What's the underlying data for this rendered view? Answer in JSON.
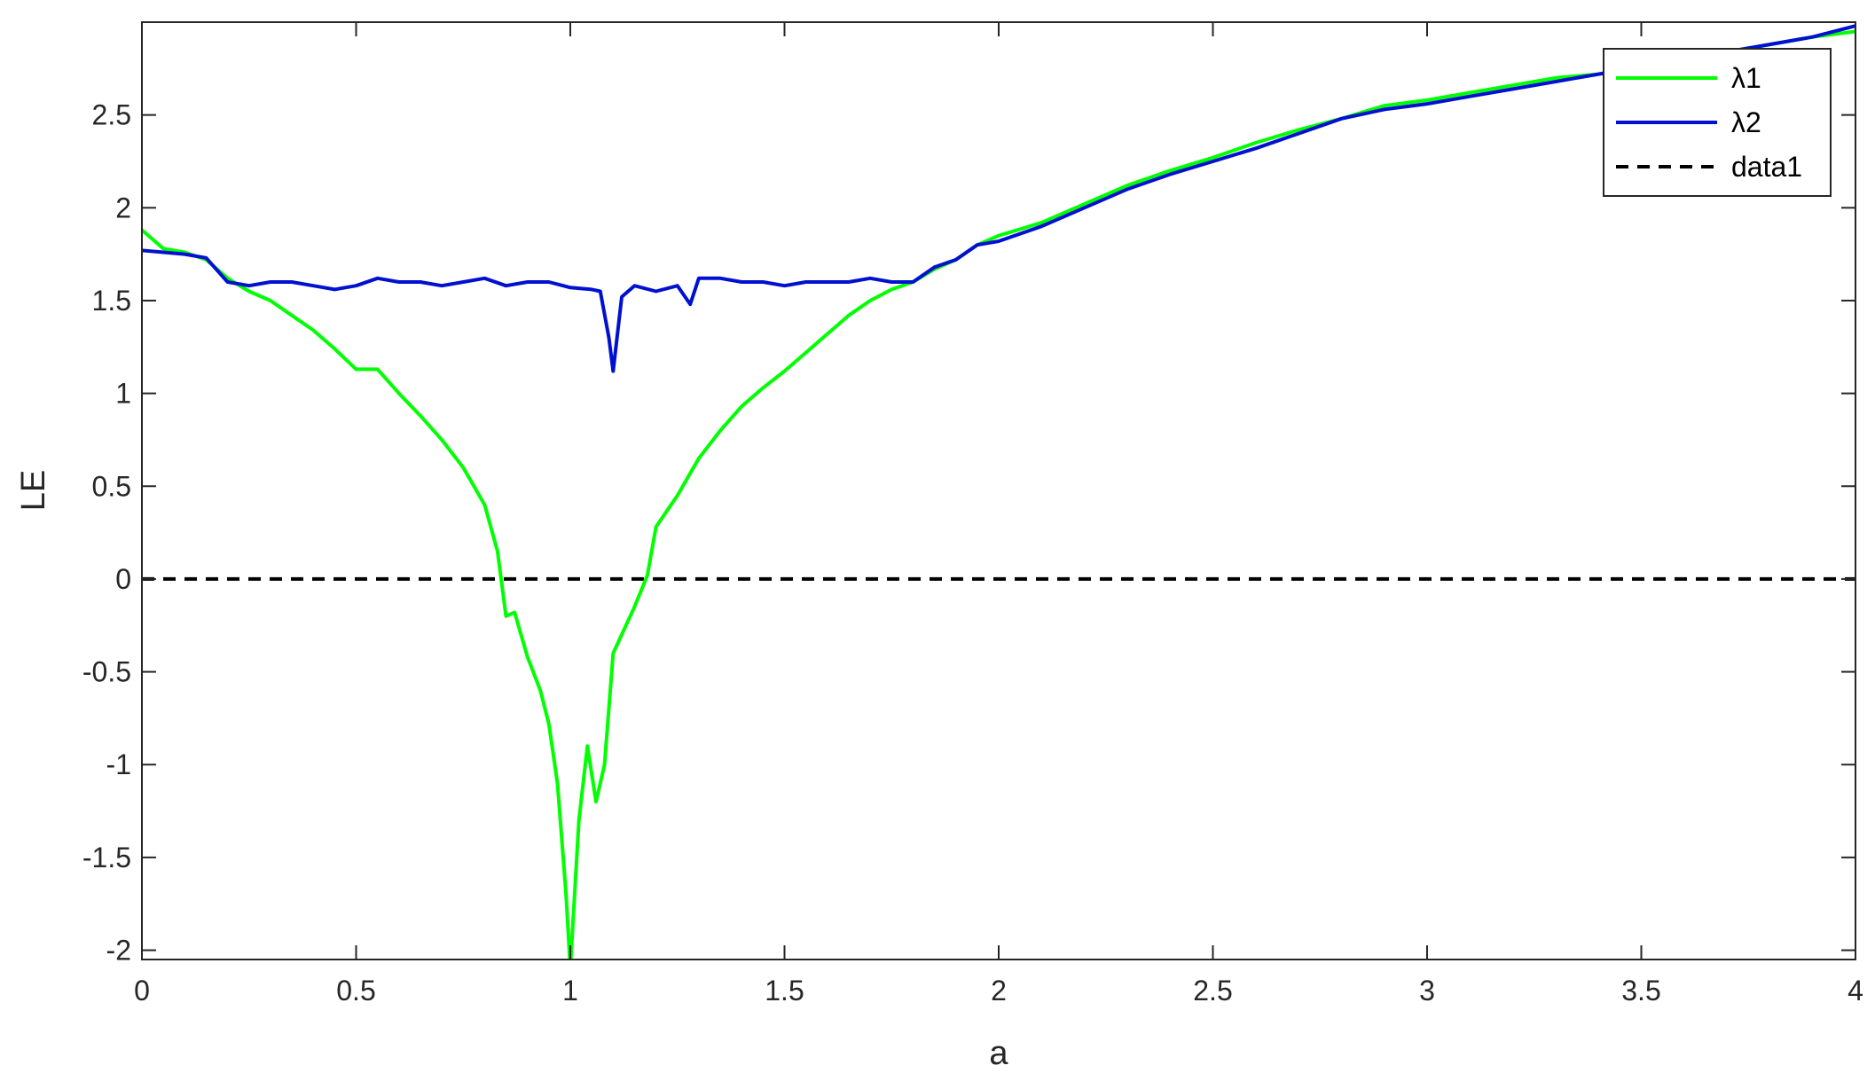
{
  "chart_data": {
    "type": "line",
    "xlabel": "a",
    "ylabel": "LE",
    "xlim": [
      0,
      4
    ],
    "ylim": [
      -2.05,
      3.0
    ],
    "xticks": [
      0,
      0.5,
      1,
      1.5,
      2,
      2.5,
      3,
      3.5,
      4
    ],
    "xtick_labels": [
      "0",
      "0.5",
      "1",
      "1.5",
      "2",
      "2.5",
      "3",
      "3.5",
      "4"
    ],
    "yticks": [
      -2,
      -1.5,
      -1,
      -0.5,
      0,
      0.5,
      1,
      1.5,
      2,
      2.5
    ],
    "ytick_labels": [
      "-2",
      "-1.5",
      "-1",
      "-0.5",
      "0",
      "0.5",
      "1",
      "1.5",
      "2",
      "2.5"
    ],
    "grid": false,
    "legend_position": "top-right",
    "series": [
      {
        "name": "λ1",
        "color": "#00ff00",
        "style": "solid",
        "x": [
          0,
          0.05,
          0.1,
          0.15,
          0.2,
          0.25,
          0.3,
          0.35,
          0.4,
          0.45,
          0.5,
          0.55,
          0.6,
          0.65,
          0.7,
          0.75,
          0.8,
          0.83,
          0.85,
          0.87,
          0.9,
          0.93,
          0.95,
          0.97,
          0.99,
          1.0,
          1.02,
          1.04,
          1.06,
          1.08,
          1.1,
          1.12,
          1.15,
          1.18,
          1.2,
          1.25,
          1.3,
          1.35,
          1.4,
          1.45,
          1.5,
          1.55,
          1.6,
          1.65,
          1.7,
          1.75,
          1.8,
          1.85,
          1.9,
          1.95,
          2.0,
          2.1,
          2.2,
          2.3,
          2.4,
          2.5,
          2.6,
          2.7,
          2.8,
          2.9,
          3.0,
          3.1,
          3.2,
          3.3,
          3.4,
          3.5,
          3.6,
          3.7,
          3.8,
          3.9,
          4.0
        ],
        "y": [
          1.88,
          1.78,
          1.76,
          1.72,
          1.62,
          1.55,
          1.5,
          1.42,
          1.34,
          1.24,
          1.13,
          1.13,
          1.0,
          0.88,
          0.75,
          0.6,
          0.4,
          0.15,
          -0.2,
          -0.18,
          -0.42,
          -0.6,
          -0.78,
          -1.1,
          -1.7,
          -2.1,
          -1.3,
          -0.9,
          -1.2,
          -1.0,
          -0.4,
          -0.3,
          -0.15,
          0.02,
          0.28,
          0.45,
          0.65,
          0.8,
          0.93,
          1.03,
          1.12,
          1.22,
          1.32,
          1.42,
          1.5,
          1.56,
          1.6,
          1.67,
          1.72,
          1.8,
          1.85,
          1.92,
          2.02,
          2.12,
          2.2,
          2.27,
          2.35,
          2.42,
          2.48,
          2.55,
          2.58,
          2.62,
          2.66,
          2.7,
          2.72,
          2.76,
          2.8,
          2.84,
          2.88,
          2.92,
          2.95
        ]
      },
      {
        "name": "λ2",
        "color": "#0010d0",
        "style": "solid",
        "x": [
          0,
          0.05,
          0.1,
          0.15,
          0.2,
          0.25,
          0.3,
          0.35,
          0.4,
          0.45,
          0.5,
          0.55,
          0.6,
          0.65,
          0.7,
          0.75,
          0.8,
          0.85,
          0.9,
          0.95,
          1.0,
          1.05,
          1.07,
          1.09,
          1.1,
          1.12,
          1.15,
          1.2,
          1.25,
          1.28,
          1.3,
          1.35,
          1.4,
          1.45,
          1.5,
          1.55,
          1.6,
          1.65,
          1.7,
          1.75,
          1.8,
          1.85,
          1.9,
          1.95,
          2.0,
          2.1,
          2.2,
          2.3,
          2.4,
          2.5,
          2.6,
          2.7,
          2.8,
          2.9,
          3.0,
          3.1,
          3.2,
          3.3,
          3.4,
          3.5,
          3.6,
          3.7,
          3.8,
          3.9,
          4.0
        ],
        "y": [
          1.77,
          1.76,
          1.75,
          1.73,
          1.6,
          1.58,
          1.6,
          1.6,
          1.58,
          1.56,
          1.58,
          1.62,
          1.6,
          1.6,
          1.58,
          1.6,
          1.62,
          1.58,
          1.6,
          1.6,
          1.57,
          1.56,
          1.55,
          1.3,
          1.12,
          1.52,
          1.58,
          1.55,
          1.58,
          1.48,
          1.62,
          1.62,
          1.6,
          1.6,
          1.58,
          1.6,
          1.6,
          1.6,
          1.62,
          1.6,
          1.6,
          1.68,
          1.72,
          1.8,
          1.82,
          1.9,
          2.0,
          2.1,
          2.18,
          2.25,
          2.32,
          2.4,
          2.48,
          2.53,
          2.56,
          2.6,
          2.64,
          2.68,
          2.72,
          2.76,
          2.8,
          2.84,
          2.88,
          2.92,
          2.98
        ]
      },
      {
        "name": "data1",
        "color": "#000000",
        "style": "dashed",
        "x": [
          0,
          4
        ],
        "y": [
          0,
          0
        ]
      }
    ]
  }
}
